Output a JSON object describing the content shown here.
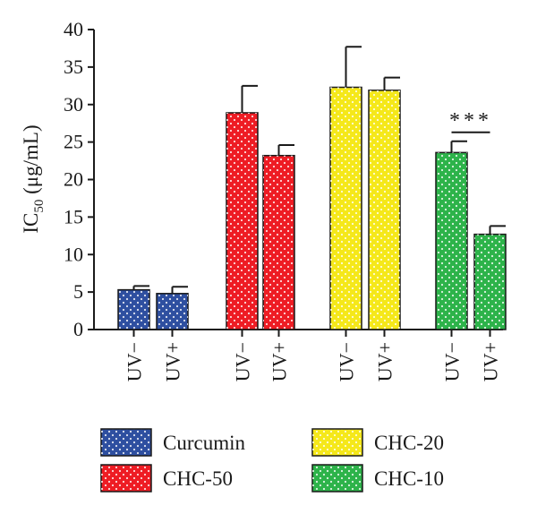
{
  "chart_data": {
    "type": "bar",
    "ylabel": {
      "prefix": "IC",
      "subscript": "50",
      "suffix": " (μg/mL)"
    },
    "ylim": [
      0,
      40
    ],
    "yticks": [
      0,
      5,
      10,
      15,
      20,
      25,
      30,
      35,
      40
    ],
    "grid": false,
    "legend_position": "bottom",
    "groups": [
      {
        "name": "Curcumin",
        "color": "#2e4fa0",
        "bars": [
          {
            "label": "UV−",
            "value": 5.3,
            "error": 0.5
          },
          {
            "label": "UV+",
            "value": 4.8,
            "error": 0.9
          }
        ]
      },
      {
        "name": "CHC-50",
        "color": "#ee1c24",
        "bars": [
          {
            "label": "UV−",
            "value": 28.9,
            "error": 3.6
          },
          {
            "label": "UV+",
            "value": 23.2,
            "error": 1.4
          }
        ]
      },
      {
        "name": "CHC-20",
        "color": "#f5e81a",
        "bars": [
          {
            "label": "UV−",
            "value": 32.3,
            "error": 5.4
          },
          {
            "label": "UV+",
            "value": 31.9,
            "error": 1.7
          }
        ]
      },
      {
        "name": "CHC-10",
        "color": "#2db34a",
        "bars": [
          {
            "label": "UV−",
            "value": 23.6,
            "error": 1.5
          },
          {
            "label": "UV+",
            "value": 12.7,
            "error": 1.1
          }
        ]
      }
    ],
    "significance": {
      "group": "CHC-10",
      "text": "***"
    },
    "legend_layout": [
      [
        "Curcumin",
        "CHC-20"
      ],
      [
        "CHC-50",
        "CHC-10"
      ]
    ]
  }
}
